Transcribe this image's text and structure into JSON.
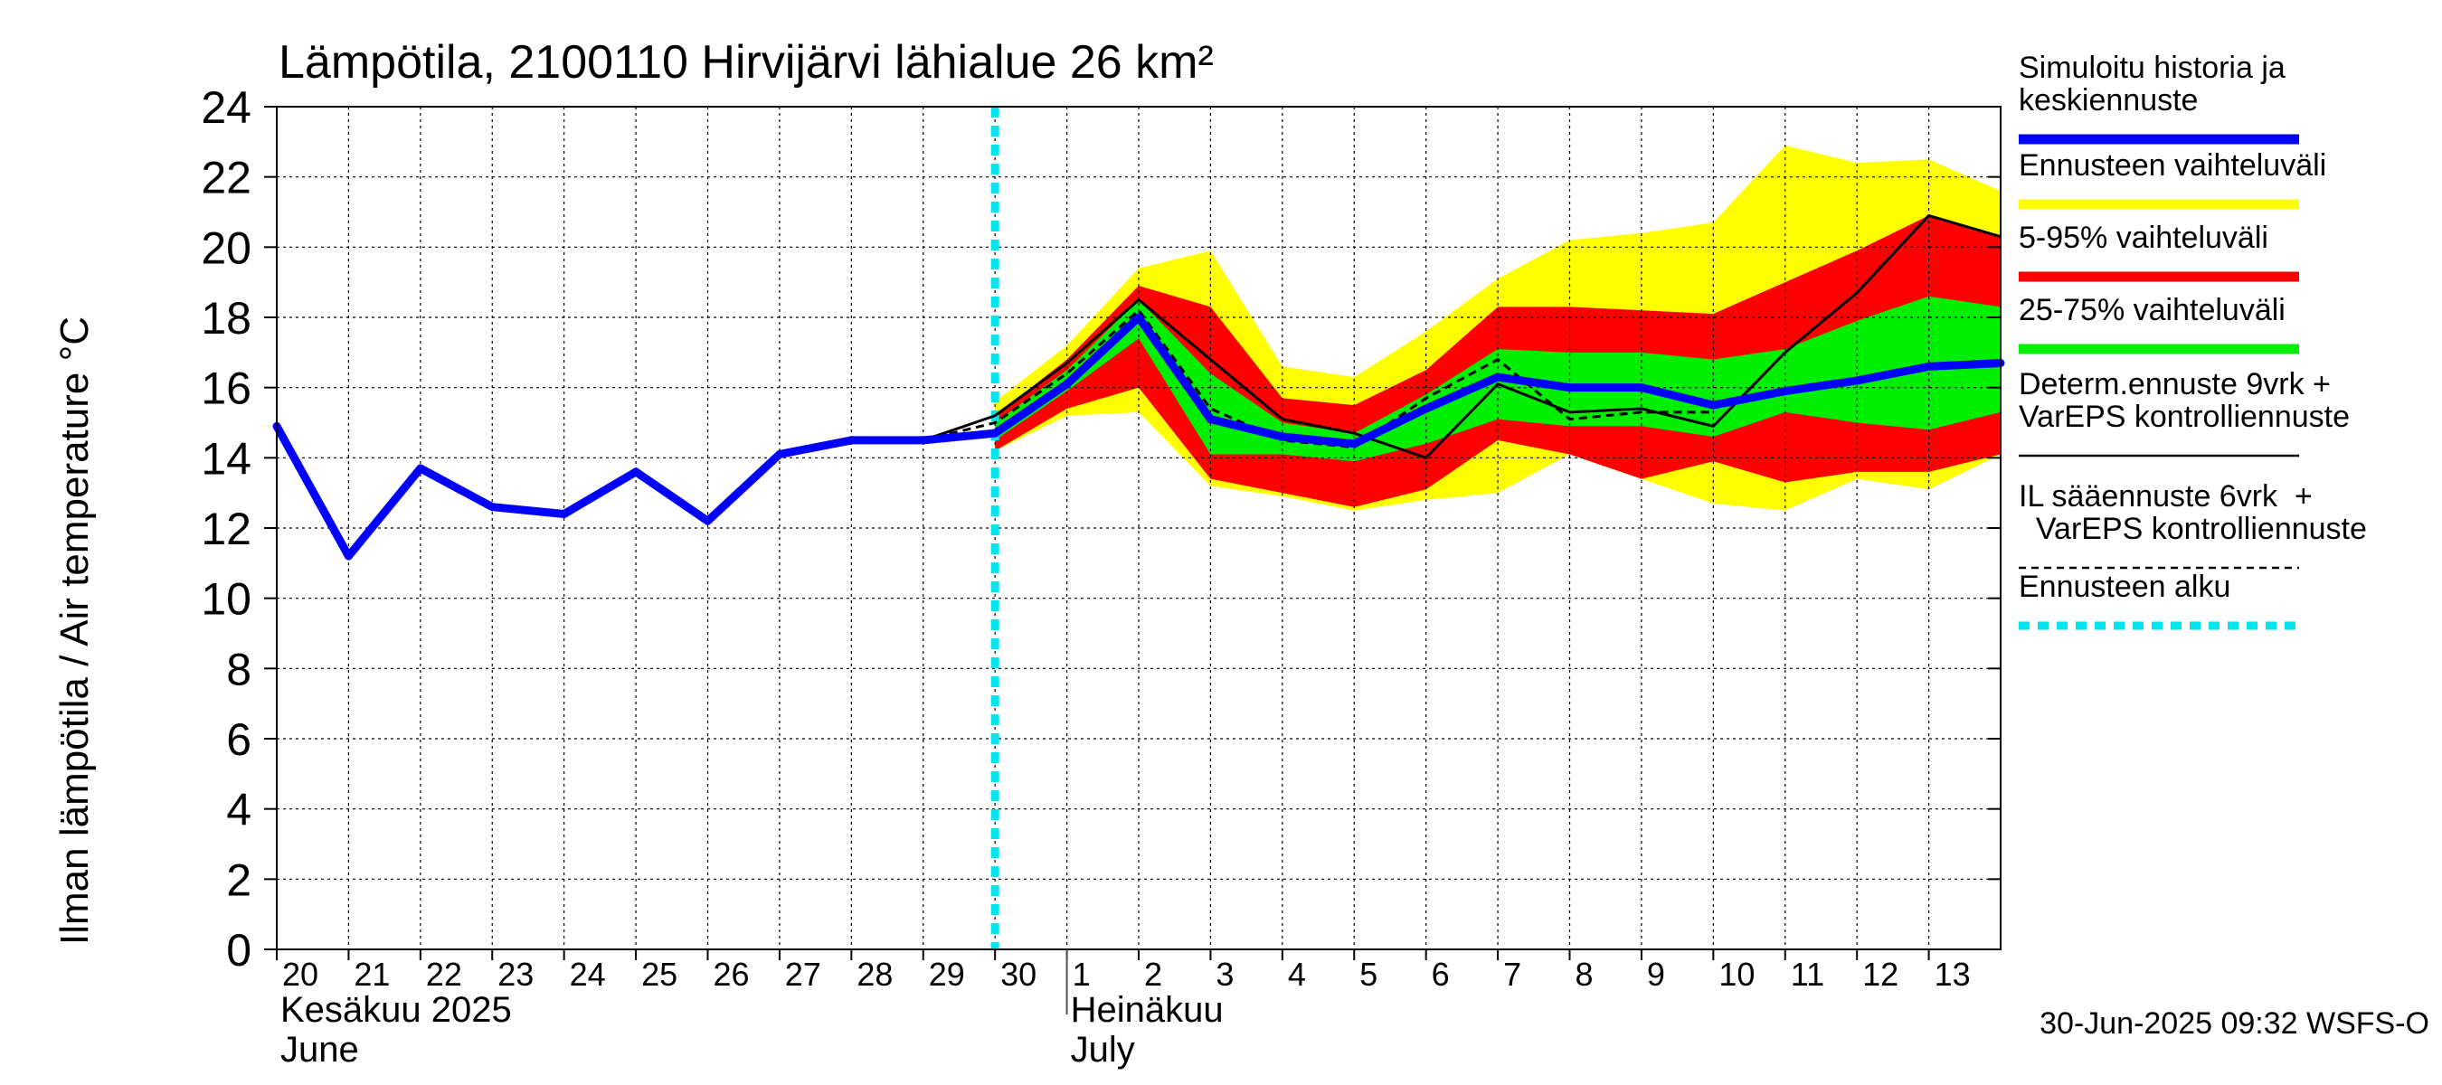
{
  "chart_data": {
    "type": "area",
    "title": "Lämpötila, 2100110 Hirvijärvi lähialue 26 km²",
    "ylabel": "Ilman lämpötila / Air temperature    °C",
    "ylim": [
      0,
      24
    ],
    "yticks": [
      0,
      2,
      4,
      6,
      8,
      10,
      12,
      14,
      16,
      18,
      20,
      22,
      24
    ],
    "xlim": [
      0,
      24
    ],
    "x_tick_labels": [
      "20",
      "21",
      "22",
      "23",
      "24",
      "25",
      "26",
      "27",
      "28",
      "29",
      "30",
      "1",
      "2",
      "3",
      "4",
      "5",
      "6",
      "7",
      "8",
      "9",
      "10",
      "11",
      "12",
      "13"
    ],
    "month_labels": [
      {
        "line1": "Kesäkuu   2025",
        "line2": "June",
        "x": 0
      },
      {
        "line1": "Heinäkuu",
        "line2": "July",
        "x": 11
      }
    ],
    "month_separators": [
      11
    ],
    "forecast_start_x": 10,
    "footer": "30-Jun-2025 09:32 WSFS-O",
    "legend": [
      {
        "label": "Simuloitu historia ja\nkeskiennuste",
        "color": "#0000ff",
        "style": "thick"
      },
      {
        "label": "Ennusteen vaihteluväli",
        "color": "#ffff00",
        "style": "thick"
      },
      {
        "label": "5-95% vaihteluväli",
        "color": "#ff0000",
        "style": "thick"
      },
      {
        "label": "25-75% vaihteluväli",
        "color": "#00ee00",
        "style": "thick"
      },
      {
        "label": "Determ.ennuste 9vrk +\nVarEPS kontrolliennuste",
        "color": "#000000",
        "style": "thin"
      },
      {
        "label": "IL sääennuste 6vrk  +\n  VarEPS kontrolliennuste",
        "color": "#000000",
        "style": "dashed"
      },
      {
        "label": "Ennusteen alku",
        "color": "#00e5ee",
        "style": "dotted"
      }
    ],
    "bands": {
      "x": [
        10,
        11,
        12,
        13,
        14,
        15,
        16,
        17,
        18,
        19,
        20,
        21,
        22,
        23,
        24
      ],
      "range": {
        "name": "Ennusteen vaihteluväli",
        "color": "#ffff00",
        "upper": [
          15.6,
          17.2,
          19.4,
          19.9,
          16.6,
          16.3,
          17.6,
          19.1,
          20.2,
          20.4,
          20.7,
          22.9,
          22.4,
          22.5,
          21.6
        ],
        "lower": [
          14.2,
          15.2,
          15.3,
          13.2,
          12.9,
          12.5,
          12.8,
          13.0,
          14.1,
          13.4,
          12.7,
          12.5,
          13.4,
          13.1,
          14.1
        ]
      },
      "p5_95": {
        "name": "5-95% vaihteluväli",
        "color": "#ff0000",
        "upper": [
          15.2,
          16.8,
          18.9,
          18.3,
          15.7,
          15.5,
          16.5,
          18.3,
          18.3,
          18.2,
          18.1,
          19.0,
          19.9,
          20.9,
          20.3
        ],
        "lower": [
          14.2,
          15.4,
          16.0,
          13.4,
          13.0,
          12.6,
          13.1,
          14.5,
          14.1,
          13.4,
          13.9,
          13.3,
          13.6,
          13.6,
          14.1
        ]
      },
      "p25_75": {
        "name": "25-75% vaihteluväli",
        "color": "#00ee00",
        "upper": [
          15.0,
          16.5,
          18.5,
          16.4,
          15.0,
          14.7,
          15.8,
          17.1,
          17.0,
          17.0,
          16.8,
          17.1,
          17.9,
          18.6,
          18.3
        ],
        "lower": [
          14.5,
          15.9,
          17.4,
          14.1,
          14.1,
          13.9,
          14.4,
          15.1,
          14.9,
          14.9,
          14.6,
          15.3,
          15.0,
          14.8,
          15.3
        ]
      }
    },
    "series": [
      {
        "name": "Simuloitu historia ja keskiennuste",
        "color": "#0000ff",
        "x": [
          0,
          1,
          2,
          3,
          4,
          5,
          6,
          7,
          8,
          9,
          10,
          11,
          12,
          13,
          14,
          15,
          16,
          17,
          18,
          19,
          20,
          21,
          22,
          23,
          24
        ],
        "y": [
          14.9,
          11.2,
          13.7,
          12.6,
          12.4,
          13.6,
          12.2,
          14.1,
          14.5,
          14.5,
          14.7,
          16.1,
          18.0,
          15.1,
          14.6,
          14.4,
          15.4,
          16.3,
          16.0,
          16.0,
          15.5,
          15.9,
          16.2,
          16.6,
          16.7
        ]
      },
      {
        "name": "Determ.ennuste 9vrk + VarEPS kontrolliennuste",
        "color": "#000000",
        "x": [
          9,
          10,
          11,
          12,
          13,
          14,
          15,
          16,
          17,
          18,
          19,
          20,
          21,
          22,
          23,
          24
        ],
        "y": [
          14.5,
          15.2,
          16.7,
          18.5,
          16.8,
          15.1,
          14.7,
          14.0,
          16.1,
          15.3,
          15.4,
          14.9,
          17.0,
          18.7,
          20.9,
          20.3
        ]
      },
      {
        "name": "IL sääennuste 6vrk + VarEPS kontrolliennuste",
        "color": "#000000",
        "x": [
          9,
          10,
          11,
          12,
          13,
          14,
          15,
          16,
          17,
          18,
          19,
          20
        ],
        "y": [
          14.5,
          15.0,
          16.4,
          18.2,
          15.4,
          14.5,
          14.3,
          15.7,
          16.8,
          15.1,
          15.3,
          15.3
        ]
      }
    ]
  }
}
